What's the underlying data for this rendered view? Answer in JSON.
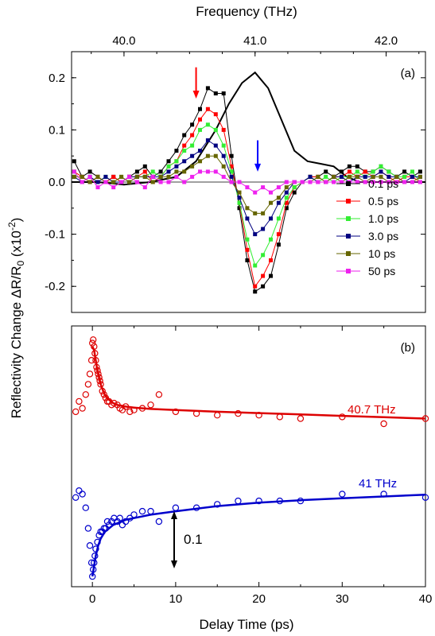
{
  "chart_data": [
    {
      "panel_label": "(a)",
      "type": "line",
      "x_axis_top_title": "Frequency (THz)",
      "x_axis_top_ticks": [
        "40.0",
        "41.0",
        "42.0"
      ],
      "x_axis_top_values": [
        40.0,
        41.0,
        42.0
      ],
      "ylabel": "Reflectivity Change ΔR/R₀ (x10⁻²)",
      "ylim": [
        -0.25,
        0.25
      ],
      "y_ticks": [
        0.2,
        0.1,
        0.0,
        -0.1,
        -0.2
      ],
      "y_tick_labels": [
        "0.2",
        "0.1",
        "0.0",
        "-0.1",
        "-0.2"
      ],
      "legend_position": "right-middle",
      "x": [
        39.62,
        39.68,
        39.74,
        39.8,
        39.86,
        39.92,
        39.98,
        40.04,
        40.1,
        40.16,
        40.22,
        40.28,
        40.34,
        40.4,
        40.46,
        40.52,
        40.58,
        40.64,
        40.7,
        40.76,
        40.82,
        40.88,
        40.94,
        41.0,
        41.06,
        41.12,
        41.18,
        41.24,
        41.3,
        41.36,
        41.42,
        41.48,
        41.54,
        41.6,
        41.66,
        41.72,
        41.78,
        41.84,
        41.9,
        41.96,
        42.02,
        42.08,
        42.14,
        42.2,
        42.26
      ],
      "series": [
        {
          "name": "0.1 ps",
          "color": "#000000",
          "values": [
            0.04,
            0.01,
            0.02,
            0.01,
            0.0,
            0.01,
            0.0,
            0.01,
            0.02,
            0.03,
            0.01,
            0.02,
            0.04,
            0.06,
            0.09,
            0.11,
            0.14,
            0.18,
            0.17,
            0.17,
            0.05,
            -0.05,
            -0.15,
            -0.21,
            -0.2,
            -0.18,
            -0.12,
            -0.05,
            -0.02,
            0.0,
            0.01,
            0.01,
            0.02,
            0.01,
            0.02,
            0.03,
            0.03,
            0.02,
            0.02,
            0.03,
            0.02,
            0.01,
            0.02,
            0.01,
            0.02
          ]
        },
        {
          "name": "0.5 ps",
          "color": "#ff0000",
          "values": [
            0.02,
            0.01,
            0.0,
            0.01,
            0.0,
            0.01,
            0.0,
            0.01,
            0.01,
            0.02,
            0.0,
            0.01,
            0.03,
            0.04,
            0.07,
            0.09,
            0.12,
            0.14,
            0.13,
            0.1,
            0.03,
            -0.04,
            -0.13,
            -0.2,
            -0.18,
            -0.15,
            -0.1,
            -0.04,
            -0.01,
            0.0,
            0.01,
            0.01,
            0.0,
            0.01,
            0.01,
            0.02,
            0.01,
            0.02,
            0.01,
            0.02,
            0.01,
            0.0,
            0.01,
            0.01,
            0.0
          ]
        },
        {
          "name": "1.0 ps",
          "color": "#33ee33",
          "values": [
            0.02,
            0.0,
            0.01,
            0.0,
            0.01,
            0.0,
            0.01,
            0.0,
            0.01,
            0.01,
            0.02,
            0.01,
            0.03,
            0.04,
            0.06,
            0.07,
            0.1,
            0.11,
            0.1,
            0.07,
            0.02,
            -0.04,
            -0.11,
            -0.16,
            -0.14,
            -0.11,
            -0.07,
            -0.03,
            -0.01,
            0.0,
            0.01,
            0.0,
            0.01,
            0.0,
            0.01,
            0.01,
            0.02,
            0.01,
            0.02,
            0.03,
            0.02,
            0.01,
            0.01,
            0.02,
            0.0
          ]
        },
        {
          "name": "3.0 ps",
          "color": "#000080",
          "values": [
            0.01,
            0.0,
            0.01,
            0.0,
            0.01,
            0.0,
            0.0,
            0.01,
            0.01,
            0.01,
            0.01,
            0.01,
            0.02,
            0.03,
            0.04,
            0.05,
            0.06,
            0.08,
            0.07,
            0.05,
            0.01,
            -0.03,
            -0.07,
            -0.1,
            -0.09,
            -0.07,
            -0.04,
            -0.02,
            0.0,
            0.0,
            0.01,
            0.0,
            0.0,
            0.01,
            0.01,
            0.0,
            0.01,
            0.01,
            0.01,
            0.02,
            0.01,
            0.01,
            0.0,
            0.01,
            0.01
          ]
        },
        {
          "name": "10 ps",
          "color": "#666600",
          "values": [
            0.01,
            0.01,
            0.0,
            0.01,
            0.0,
            0.0,
            0.01,
            0.0,
            0.01,
            0.01,
            0.0,
            0.01,
            0.01,
            0.02,
            0.02,
            0.03,
            0.04,
            0.05,
            0.05,
            0.03,
            0.0,
            -0.02,
            -0.05,
            -0.06,
            -0.06,
            -0.04,
            -0.03,
            -0.01,
            0.0,
            0.0,
            0.0,
            0.01,
            0.0,
            0.01,
            0.0,
            0.01,
            0.01,
            0.0,
            0.01,
            0.01,
            0.0,
            0.01,
            0.0,
            0.0,
            0.01
          ]
        },
        {
          "name": "50 ps",
          "color": "#ee22ee",
          "values": [
            0.02,
            0.0,
            0.01,
            -0.01,
            0.0,
            -0.01,
            0.0,
            0.01,
            0.0,
            -0.01,
            0.01,
            0.0,
            0.0,
            0.01,
            0.0,
            0.01,
            0.02,
            0.02,
            0.02,
            0.01,
            0.0,
            0.0,
            -0.01,
            -0.02,
            -0.01,
            -0.02,
            -0.01,
            0.0,
            0.0,
            0.0,
            0.0,
            0.0,
            0.0,
            0.0,
            0.0,
            0.0,
            0.0,
            0.0,
            0.0,
            0.0,
            0.0,
            0.0,
            0.0,
            0.0,
            0.0
          ]
        }
      ],
      "reference_curve": {
        "color": "#000000",
        "x": [
          39.6,
          39.8,
          40.0,
          40.2,
          40.4,
          40.55,
          40.7,
          40.8,
          40.9,
          41.0,
          41.1,
          41.2,
          41.3,
          41.4,
          41.5,
          41.6,
          41.7,
          41.8,
          42.0,
          42.3
        ],
        "values": [
          0.0,
          0.0,
          -0.005,
          0.0,
          0.01,
          0.04,
          0.1,
          0.15,
          0.19,
          0.21,
          0.18,
          0.12,
          0.06,
          0.04,
          0.035,
          0.03,
          0.01,
          0.0,
          0.0,
          0.0
        ]
      },
      "arrows": [
        {
          "color": "#ff0000",
          "x": 40.55,
          "y_from": 0.22,
          "y_to": 0.16
        },
        {
          "color": "#0000ff",
          "x": 41.02,
          "y_from": 0.08,
          "y_to": 0.02
        }
      ]
    },
    {
      "panel_label": "(b)",
      "type": "scatter",
      "xlabel": "Delay Time (ps)",
      "xlim": [
        -2.5,
        40
      ],
      "x_ticks": [
        0,
        10,
        20,
        30,
        40
      ],
      "x_tick_labels": [
        "0",
        "10",
        "20",
        "30",
        "40"
      ],
      "scale_bar_label": "0.1",
      "series": [
        {
          "name": "40.7 THz",
          "color": "#dd0000",
          "points_x": [
            -2.0,
            -1.6,
            -1.2,
            -0.8,
            -0.5,
            -0.3,
            -0.1,
            0.0,
            0.1,
            0.2,
            0.3,
            0.4,
            0.5,
            0.6,
            0.7,
            0.8,
            0.9,
            1.0,
            1.2,
            1.4,
            1.6,
            1.8,
            2.0,
            2.3,
            2.6,
            3.0,
            3.3,
            3.6,
            4.0,
            4.5,
            5.0,
            6.0,
            7.0,
            8.0,
            10.0,
            12.5,
            15.0,
            17.5,
            20.0,
            22.5,
            25.0,
            30.0,
            35.0,
            40.0
          ],
          "points_y": [
            0.01,
            0.04,
            0.02,
            0.06,
            0.09,
            0.12,
            0.16,
            0.21,
            0.22,
            0.2,
            0.18,
            0.16,
            0.14,
            0.13,
            0.12,
            0.11,
            0.1,
            0.09,
            0.07,
            0.06,
            0.05,
            0.04,
            0.04,
            0.03,
            0.035,
            0.03,
            0.02,
            0.015,
            0.025,
            0.01,
            0.015,
            0.02,
            0.03,
            0.06,
            0.01,
            0.005,
            0.0,
            0.005,
            0.0,
            -0.005,
            -0.01,
            -0.005,
            -0.025,
            -0.01
          ],
          "fit": {
            "x": [
              0.0,
              0.2,
              0.4,
              0.6,
              0.8,
              1.0,
              1.3,
              1.6,
              2.0,
              2.5,
              3.0,
              4.0,
              5.0,
              7.0,
              10.0,
              15.0,
              20.0,
              25.0,
              30.0,
              35.0,
              40.0
            ],
            "values": [
              0.2,
              0.19,
              0.16,
              0.13,
              0.11,
              0.09,
              0.07,
              0.055,
              0.045,
              0.035,
              0.03,
              0.025,
              0.022,
              0.018,
              0.015,
              0.01,
              0.006,
              0.002,
              -0.002,
              -0.006,
              -0.01
            ]
          }
        },
        {
          "name": "41 THz",
          "color": "#0000cc",
          "points_x": [
            -2.0,
            -1.6,
            -1.2,
            -0.8,
            -0.5,
            -0.3,
            -0.1,
            0.0,
            0.1,
            0.2,
            0.3,
            0.4,
            0.6,
            0.8,
            1.0,
            1.2,
            1.4,
            1.6,
            1.8,
            2.0,
            2.3,
            2.6,
            3.0,
            3.3,
            3.6,
            4.0,
            4.5,
            5.0,
            6.0,
            7.0,
            8.0,
            10.0,
            12.5,
            15.0,
            17.5,
            20.0,
            22.5,
            25.0,
            30.0,
            35.0,
            40.0
          ],
          "points_y": [
            -0.24,
            -0.22,
            -0.23,
            -0.27,
            -0.33,
            -0.38,
            -0.43,
            -0.47,
            -0.45,
            -0.43,
            -0.41,
            -0.39,
            -0.37,
            -0.35,
            -0.34,
            -0.34,
            -0.33,
            -0.33,
            -0.31,
            -0.32,
            -0.31,
            -0.3,
            -0.31,
            -0.3,
            -0.32,
            -0.31,
            -0.3,
            -0.29,
            -0.28,
            -0.28,
            -0.31,
            -0.27,
            -0.27,
            -0.26,
            -0.25,
            -0.25,
            -0.25,
            -0.25,
            -0.23,
            -0.23,
            -0.24
          ],
          "fit": {
            "x": [
              0.0,
              0.2,
              0.4,
              0.7,
              1.0,
              1.5,
              2.0,
              2.5,
              3.0,
              4.0,
              5.0,
              7.0,
              10.0,
              15.0,
              20.0,
              25.0,
              30.0,
              35.0,
              40.0
            ],
            "values": [
              -0.47,
              -0.44,
              -0.41,
              -0.38,
              -0.36,
              -0.34,
              -0.33,
              -0.32,
              -0.315,
              -0.305,
              -0.3,
              -0.29,
              -0.28,
              -0.265,
              -0.255,
              -0.248,
              -0.242,
              -0.237,
              -0.232
            ]
          }
        }
      ]
    }
  ]
}
